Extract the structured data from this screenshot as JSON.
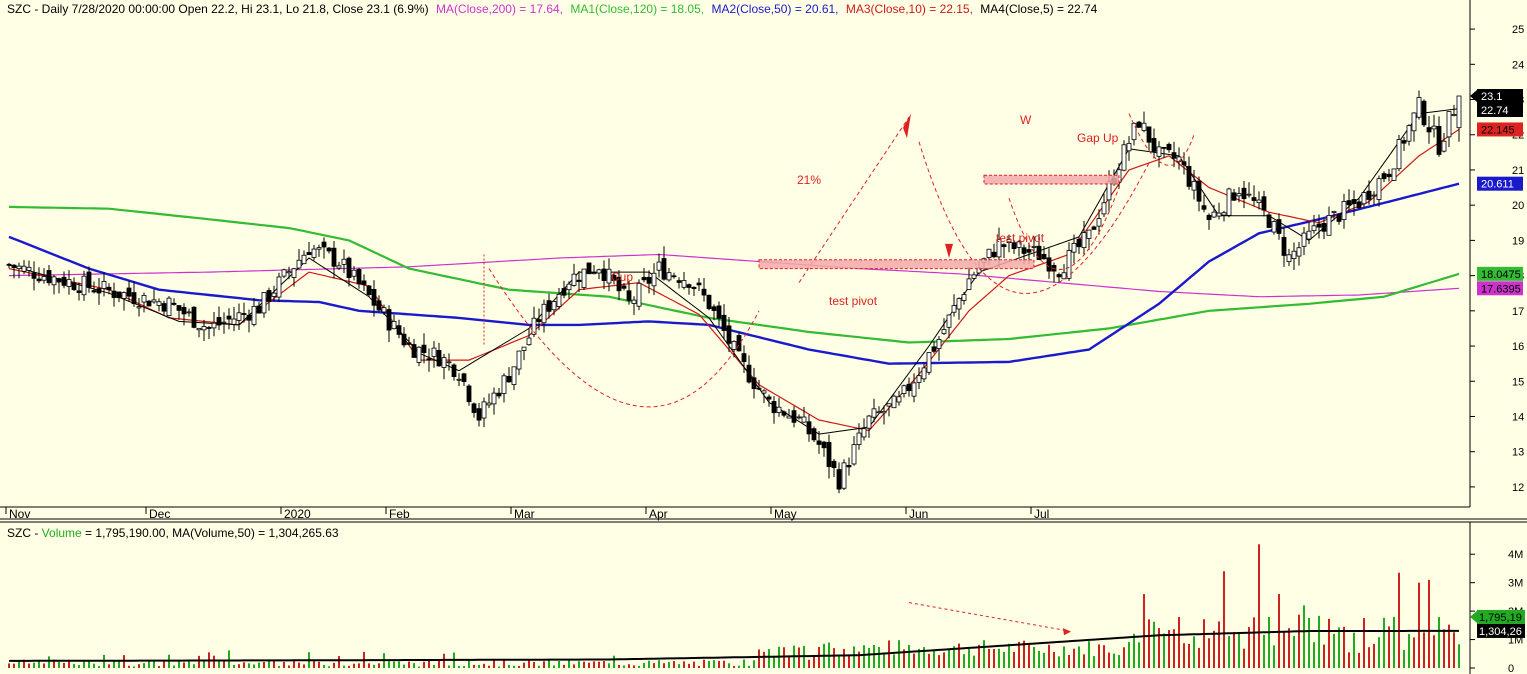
{
  "colors": {
    "background": "#ffffe6",
    "axis": "#000000",
    "up": "#ffffff",
    "down": "#000000",
    "ma200": "#cc33cc",
    "ma120": "#33bb33",
    "ma50": "#1a1acc",
    "ma10": "#cc1a1a",
    "ma5": "#000000",
    "annotation": "#dd2222",
    "vol_up": "#22aa22",
    "vol_down": "#cc2222",
    "vol_ma": "#000000"
  },
  "header": {
    "symbol_info": "SZC - Daily 7/28/2020 00:00:00 Open 22.2, Hi 23.1, Lo 21.8, Close 23.1 (6.9%)",
    "ma200": "MA(Close,200) = 17.64,",
    "ma120": "MA1(Close,120) = 18.05,",
    "ma50": "MA2(Close,50) = 20.61,",
    "ma10": "MA3(Close,10) = 22.15,",
    "ma5": "MA4(Close,5) = 22.74"
  },
  "volume_header": {
    "prefix": "SZC - ",
    "volume_label": "Volume",
    "text": " = 1,795,190.00, MA(Volume,50) = 1,304,265.63"
  },
  "chart_data": [
    {
      "type": "candlestick",
      "ylim": [
        11.6,
        25.4
      ],
      "y_ticks": [
        "12",
        "13",
        "14",
        "15",
        "16",
        "17",
        "18",
        "19",
        "20",
        "21",
        "22",
        "23",
        "24",
        "25"
      ],
      "x_ticks": [
        "Nov",
        "Dec",
        "2020",
        "Feb",
        "Mar",
        "Apr",
        "May",
        "Jun",
        "Jul"
      ],
      "ohlc_last": {
        "date": "7/28/2020",
        "open": 22.2,
        "high": 23.1,
        "low": 21.8,
        "close": 23.1
      },
      "price_path": [
        [
          0,
          18.3
        ],
        [
          10,
          17.9
        ],
        [
          22,
          17.5
        ],
        [
          32,
          17.2
        ],
        [
          40,
          16.5
        ],
        [
          50,
          17.1
        ],
        [
          60,
          18.8
        ],
        [
          66,
          18.4
        ],
        [
          72,
          17.4
        ],
        [
          80,
          16.0
        ],
        [
          86,
          15.7
        ],
        [
          90,
          15.3
        ],
        [
          94,
          14.0
        ],
        [
          100,
          15.2
        ],
        [
          106,
          16.8
        ],
        [
          112,
          17.9
        ],
        [
          118,
          18.3
        ],
        [
          124,
          17.2
        ],
        [
          130,
          18.2
        ],
        [
          136,
          17.9
        ],
        [
          140,
          17.2
        ],
        [
          146,
          15.6
        ],
        [
          152,
          14.4
        ],
        [
          158,
          13.9
        ],
        [
          162,
          13.2
        ],
        [
          166,
          12.2
        ],
        [
          172,
          13.9
        ],
        [
          178,
          14.4
        ],
        [
          186,
          16.2
        ],
        [
          192,
          17.9
        ],
        [
          198,
          18.9
        ],
        [
          206,
          18.6
        ],
        [
          210,
          18.2
        ],
        [
          216,
          19.1
        ],
        [
          222,
          21.2
        ],
        [
          226,
          22.4
        ],
        [
          230,
          21.4
        ],
        [
          234,
          21.3
        ],
        [
          240,
          19.6
        ],
        [
          246,
          20.5
        ],
        [
          252,
          19.6
        ],
        [
          256,
          18.5
        ],
        [
          262,
          19.4
        ],
        [
          270,
          20.1
        ],
        [
          276,
          21.0
        ],
        [
          282,
          22.8
        ],
        [
          286,
          21.7
        ],
        [
          290,
          23.1
        ]
      ],
      "series": [
        {
          "name": "MA(Close,200)",
          "last": 17.64,
          "path": [
            [
              0,
              18.0
            ],
            [
              40,
              18.1
            ],
            [
              80,
              18.25
            ],
            [
              110,
              18.5
            ],
            [
              130,
              18.6
            ],
            [
              150,
              18.4
            ],
            [
              170,
              18.2
            ],
            [
              190,
              18.05
            ],
            [
              210,
              17.8
            ],
            [
              230,
              17.55
            ],
            [
              250,
              17.4
            ],
            [
              270,
              17.45
            ],
            [
              290,
              17.64
            ]
          ]
        },
        {
          "name": "MA1(Close,120)",
          "last": 18.05,
          "path": [
            [
              0,
              19.95
            ],
            [
              20,
              19.9
            ],
            [
              40,
              19.6
            ],
            [
              56,
              19.35
            ],
            [
              68,
              19.0
            ],
            [
              80,
              18.2
            ],
            [
              100,
              17.6
            ],
            [
              120,
              17.4
            ],
            [
              140,
              16.8
            ],
            [
              160,
              16.4
            ],
            [
              180,
              16.1
            ],
            [
              200,
              16.2
            ],
            [
              220,
              16.5
            ],
            [
              240,
              17.0
            ],
            [
              260,
              17.2
            ],
            [
              275,
              17.4
            ],
            [
              290,
              18.05
            ]
          ]
        },
        {
          "name": "MA2(Close,50)",
          "last": 20.61,
          "path": [
            [
              0,
              19.1
            ],
            [
              16,
              18.2
            ],
            [
              30,
              17.6
            ],
            [
              50,
              17.3
            ],
            [
              62,
              17.25
            ],
            [
              70,
              17.0
            ],
            [
              80,
              16.9
            ],
            [
              90,
              16.8
            ],
            [
              104,
              16.6
            ],
            [
              114,
              16.6
            ],
            [
              128,
              16.7
            ],
            [
              140,
              16.6
            ],
            [
              160,
              15.9
            ],
            [
              176,
              15.5
            ],
            [
              200,
              15.55
            ],
            [
              216,
              15.9
            ],
            [
              230,
              17.2
            ],
            [
              240,
              18.4
            ],
            [
              250,
              19.2
            ],
            [
              262,
              19.6
            ],
            [
              276,
              20.1
            ],
            [
              290,
              20.61
            ]
          ]
        },
        {
          "name": "MA3(Close,10)",
          "last": 22.15,
          "path": [
            [
              0,
              18.2
            ],
            [
              20,
              17.6
            ],
            [
              32,
              16.8
            ],
            [
              46,
              16.6
            ],
            [
              60,
              18.1
            ],
            [
              72,
              17.7
            ],
            [
              82,
              15.6
            ],
            [
              92,
              15.6
            ],
            [
              104,
              16.3
            ],
            [
              114,
              17.6
            ],
            [
              126,
              17.8
            ],
            [
              138,
              16.9
            ],
            [
              150,
              14.9
            ],
            [
              162,
              13.9
            ],
            [
              172,
              13.6
            ],
            [
              182,
              15.2
            ],
            [
              192,
              17.0
            ],
            [
              200,
              18.0
            ],
            [
              212,
              18.6
            ],
            [
              224,
              21.0
            ],
            [
              232,
              21.4
            ],
            [
              240,
              20.5
            ],
            [
              252,
              19.8
            ],
            [
              262,
              19.5
            ],
            [
              272,
              20.1
            ],
            [
              282,
              21.4
            ],
            [
              290,
              22.15
            ]
          ]
        },
        {
          "name": "MA4(Close,5)",
          "last": 22.74,
          "path": [
            [
              0,
              18.3
            ],
            [
              20,
              17.5
            ],
            [
              34,
              16.7
            ],
            [
              46,
              16.6
            ],
            [
              60,
              18.5
            ],
            [
              72,
              17.4
            ],
            [
              82,
              15.8
            ],
            [
              90,
              15.3
            ],
            [
              104,
              16.5
            ],
            [
              114,
              18.1
            ],
            [
              128,
              18.1
            ],
            [
              140,
              16.8
            ],
            [
              152,
              14.4
            ],
            [
              162,
              13.5
            ],
            [
              172,
              13.7
            ],
            [
              184,
              16.0
            ],
            [
              194,
              18.1
            ],
            [
              204,
              18.6
            ],
            [
              214,
              19.1
            ],
            [
              224,
              21.6
            ],
            [
              234,
              21.4
            ],
            [
              242,
              19.7
            ],
            [
              252,
              19.7
            ],
            [
              260,
              19.0
            ],
            [
              270,
              20.2
            ],
            [
              282,
              22.6
            ],
            [
              290,
              22.74
            ]
          ]
        }
      ],
      "value_tags": [
        "23.1",
        "22.74",
        "22.145",
        "20.611",
        "18.0475",
        "17.6395"
      ],
      "annotations": {
        "cup": "Cup",
        "pct": "21%",
        "w": "W",
        "gap_up": "Gap Up",
        "test_pivot_1": "test pivot",
        "test_pivot_2": "test pivot"
      }
    },
    {
      "type": "bar",
      "name": "Volume",
      "last": 1795190.0,
      "ma50": 1304265.63,
      "ylim": [
        0,
        4500000
      ],
      "y_ticks": [
        "0",
        "1M",
        "2M",
        "3M",
        "4M"
      ],
      "value_tags": [
        "1,795,19",
        "1,304,26"
      ],
      "spikes": [
        [
          227,
          2.6
        ],
        [
          243,
          3.4
        ],
        [
          250,
          4.35
        ],
        [
          254,
          2.6
        ],
        [
          259,
          2.2
        ],
        [
          278,
          3.35
        ],
        [
          282,
          3.0
        ],
        [
          284,
          3.1
        ],
        [
          286,
          1.79
        ]
      ]
    }
  ]
}
